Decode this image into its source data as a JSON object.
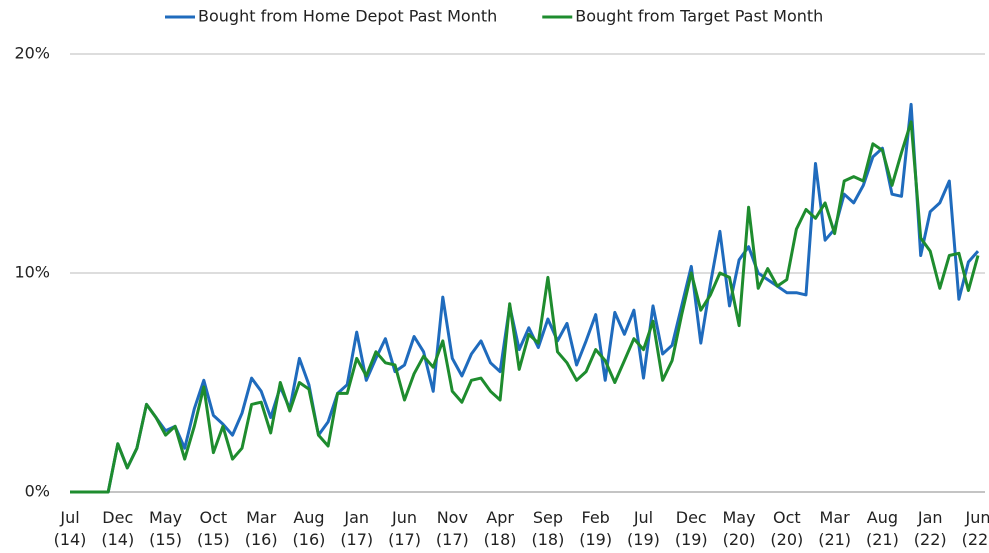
{
  "chart_data": {
    "type": "line",
    "categories": [
      "Jul (14)",
      null,
      null,
      null,
      null,
      "Dec (14)",
      null,
      null,
      null,
      null,
      "May (15)",
      null,
      null,
      null,
      null,
      "Oct (15)",
      null,
      null,
      null,
      null,
      "Mar (16)",
      null,
      null,
      null,
      null,
      "Aug (16)",
      null,
      null,
      null,
      null,
      "Jan (17)",
      null,
      null,
      null,
      null,
      "Jun (17)",
      null,
      null,
      null,
      null,
      "Nov (17)",
      null,
      null,
      null,
      null,
      "Apr (18)",
      null,
      null,
      null,
      null,
      "Sep (18)",
      null,
      null,
      null,
      null,
      "Feb (19)",
      null,
      null,
      null,
      null,
      "Jul (19)",
      null,
      null,
      null,
      null,
      "Dec (19)",
      null,
      null,
      null,
      null,
      "May (20)",
      null,
      null,
      null,
      null,
      "Oct (20)",
      null,
      null,
      null,
      null,
      "Mar (21)",
      null,
      null,
      null,
      null,
      "Aug (21)",
      null,
      null,
      null,
      null,
      "Jan (22)",
      null,
      null,
      null,
      null,
      "Jun (22)"
    ],
    "series": [
      {
        "name": "Bought from Home Depot Past Month",
        "color": "#1f6bbd",
        "values": [
          0,
          0,
          0,
          0,
          0,
          2.2,
          1.1,
          2.0,
          4.0,
          3.4,
          2.8,
          3.0,
          2.0,
          3.8,
          5.1,
          3.5,
          3.1,
          2.6,
          3.6,
          5.2,
          4.6,
          3.4,
          4.8,
          3.8,
          6.1,
          4.9,
          2.6,
          3.2,
          4.5,
          4.9,
          7.3,
          5.1,
          6.1,
          7.0,
          5.5,
          5.8,
          7.1,
          6.4,
          4.6,
          8.9,
          6.1,
          5.3,
          6.3,
          6.9,
          5.9,
          5.5,
          8.5,
          6.5,
          7.5,
          6.6,
          7.9,
          6.9,
          7.7,
          5.8,
          6.9,
          8.1,
          5.1,
          8.2,
          7.2,
          8.3,
          5.2,
          8.5,
          6.3,
          6.7,
          8.5,
          10.3,
          6.8,
          9.5,
          11.9,
          8.5,
          10.6,
          11.2,
          10.0,
          9.7,
          9.4,
          9.1,
          9.1,
          9.0,
          15.0,
          11.5,
          12.0,
          13.6,
          13.2,
          14.0,
          15.3,
          15.7,
          13.6,
          13.5,
          17.7,
          10.8,
          12.8,
          13.2,
          14.2,
          8.8,
          10.5,
          11.0
        ]
      },
      {
        "name": "Bought from Target Past Month",
        "color": "#1e8c2e",
        "values": [
          0,
          0,
          0,
          0,
          0,
          2.2,
          1.1,
          2.0,
          4.0,
          3.4,
          2.6,
          3.0,
          1.5,
          3.0,
          4.8,
          1.8,
          3.0,
          1.5,
          2.0,
          4.0,
          4.1,
          2.7,
          5.0,
          3.7,
          5.0,
          4.7,
          2.6,
          2.1,
          4.5,
          4.5,
          6.1,
          5.3,
          6.4,
          5.9,
          5.8,
          4.2,
          5.4,
          6.2,
          5.7,
          6.9,
          4.6,
          4.1,
          5.1,
          5.2,
          4.6,
          4.2,
          8.6,
          5.6,
          7.2,
          6.8,
          9.8,
          6.4,
          5.9,
          5.1,
          5.5,
          6.5,
          6.0,
          5.0,
          6.0,
          7.0,
          6.5,
          7.8,
          5.1,
          6.0,
          8.1,
          10.0,
          8.3,
          9.0,
          10.0,
          9.8,
          7.6,
          13.0,
          9.3,
          10.2,
          9.4,
          9.7,
          12.0,
          12.9,
          12.5,
          13.2,
          11.8,
          14.2,
          14.4,
          14.2,
          15.9,
          15.6,
          14.0,
          15.5,
          16.9,
          11.6,
          11.0,
          9.3,
          10.8,
          10.9,
          9.2,
          10.8
        ]
      }
    ],
    "ylim": [
      0,
      20
    ],
    "yticks": [
      {
        "value": 0,
        "label": "0%"
      },
      {
        "value": 10,
        "label": "10%"
      },
      {
        "value": 20,
        "label": "20%"
      }
    ],
    "grid": true,
    "legend": "top"
  }
}
